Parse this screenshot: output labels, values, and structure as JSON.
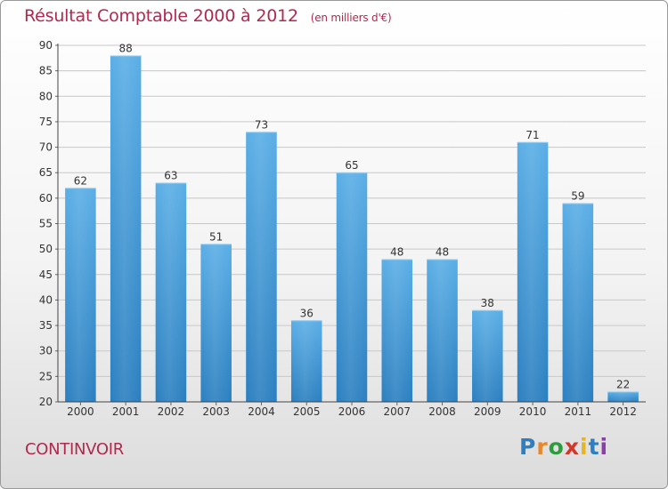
{
  "header": {
    "title": "Résultat Comptable 2000 à 2012",
    "unit": "(en milliers d'€)"
  },
  "commune": "CONTINVOIR",
  "logo": {
    "letters": [
      "P",
      "r",
      "o",
      "x",
      "i",
      "t",
      "i"
    ]
  },
  "colors": {
    "title": "#b02a4e",
    "bar_top": "#5aaee6",
    "bar_bottom": "#2b7fc0"
  },
  "chart_data": {
    "type": "bar",
    "title": "Résultat Comptable 2000 à 2012",
    "subtitle": "(en milliers d'€)",
    "categories": [
      "2000",
      "2001",
      "2002",
      "2003",
      "2004",
      "2005",
      "2006",
      "2007",
      "2008",
      "2009",
      "2010",
      "2011",
      "2012"
    ],
    "values": [
      62,
      88,
      63,
      51,
      73,
      36,
      65,
      48,
      48,
      38,
      71,
      59,
      22
    ],
    "ylim": [
      20,
      90
    ],
    "yticks": [
      20,
      25,
      30,
      35,
      40,
      45,
      50,
      55,
      60,
      65,
      70,
      75,
      80,
      85,
      90
    ],
    "grid": true,
    "legend": "none",
    "xlabel": "",
    "ylabel": ""
  }
}
